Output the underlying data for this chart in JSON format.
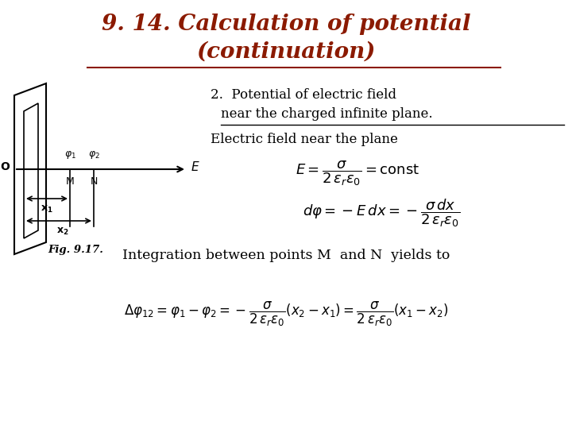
{
  "title_line1": "9. 14. Calculation of potential",
  "title_line2": "(continuation)",
  "title_color": "#8B1A00",
  "title_fontsize": 20,
  "bg_color": "#FFFFFF",
  "text_color": "#000000",
  "text2_line1": "2.  Potential of electric field",
  "text2_line2": "near the charged infinite plane.",
  "ef_text": "Electric field near the plane",
  "eq1": "$E = \\dfrac{\\sigma}{2\\,\\varepsilon_r\\varepsilon_0} = \\mathrm{const}$",
  "eq2": "$d\\varphi = -E\\,dx = -\\dfrac{\\sigma\\,dx}{2\\,\\varepsilon_r\\varepsilon_0}$",
  "integration_text": "Integration between points M  and N  yields to",
  "eq3": "$\\Delta\\varphi_{12} = \\varphi_1 - \\varphi_2 = -\\dfrac{\\sigma}{2\\,\\varepsilon_r\\varepsilon_0}(x_2 - x_1) = \\dfrac{\\sigma}{2\\,\\varepsilon_r\\varepsilon_0}(x_1 - x_2)$",
  "fig_caption": "Fig. 9.17."
}
